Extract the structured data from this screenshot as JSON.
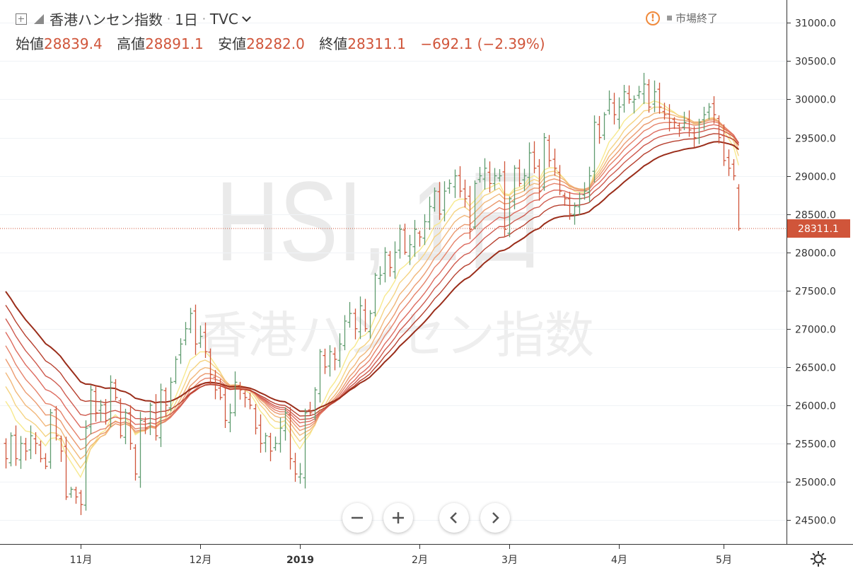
{
  "header": {
    "symbol_name": "香港ハンセン指数",
    "sep": "·",
    "interval": "1日",
    "source": "TVC",
    "ohlc": {
      "open_label": "始値",
      "open": "28839.4",
      "high_label": "高値",
      "high": "28891.1",
      "low_label": "安値",
      "low": "28282.0",
      "close_label": "終値",
      "close": "28311.1",
      "change": "−692.1 (−2.39%)"
    },
    "market_status": "市場終了",
    "status_icon": "!"
  },
  "watermark": {
    "main": "HSI, 1日",
    "sub": "香港ハンセン指数"
  },
  "colors": {
    "up": "#5f9c6e",
    "down": "#d0553a",
    "price_label_bg": "#d0553a",
    "ribbon": [
      "#f7e98e",
      "#f5d382",
      "#f1b77a",
      "#eb9a6f",
      "#e5826a",
      "#dd6b5f",
      "#ce5a4e",
      "#b7402f",
      "#9a2d1a"
    ]
  },
  "chart_data": {
    "type": "candlestick",
    "symbol": "HSI",
    "title": "香港ハンセン指数",
    "interval": "1日",
    "ylim": [
      24175,
      31300
    ],
    "y_ticks": [
      24500,
      25000,
      25500,
      26000,
      26500,
      27000,
      27500,
      28000,
      28500,
      29000,
      29500,
      30000,
      30500,
      31000
    ],
    "y_tick_labels": [
      "24500.0",
      "25000.0",
      "25500.0",
      "26000.0",
      "26500.0",
      "27000.0",
      "27500.0",
      "28000.0",
      "28500.0",
      "29000.0",
      "29500.0",
      "30000.0",
      "30500.0",
      "31000.0"
    ],
    "x_ticks": [
      {
        "label": "11月",
        "bar": 15
      },
      {
        "label": "12月",
        "bar": 39
      },
      {
        "label": "2019",
        "bar": 59
      },
      {
        "label": "2月",
        "bar": 83
      },
      {
        "label": "3月",
        "bar": 101
      },
      {
        "label": "4月",
        "bar": 123
      },
      {
        "label": "5月",
        "bar": 144
      }
    ],
    "last_price": 28311.1,
    "last_price_label": "28311.1",
    "closes": [
      25300,
      25600,
      25300,
      25500,
      25400,
      25600,
      25500,
      25300,
      25200,
      25900,
      25600,
      25400,
      24800,
      24900,
      24800,
      24700,
      25700,
      26200,
      25900,
      26000,
      25800,
      26300,
      26100,
      25600,
      25900,
      25500,
      25100,
      25800,
      25700,
      26000,
      25600,
      26200,
      26000,
      26300,
      26600,
      26800,
      27000,
      27200,
      26800,
      26900,
      26700,
      26400,
      26200,
      26100,
      25800,
      25900,
      26300,
      26200,
      26100,
      26000,
      25700,
      25500,
      25600,
      25400,
      25500,
      25700,
      25900,
      25300,
      25100,
      25100,
      25900,
      25900,
      26200,
      26700,
      26500,
      26700,
      26600,
      26800,
      27100,
      27200,
      27000,
      27300,
      27000,
      27200,
      27700,
      27700,
      28000,
      27800,
      28000,
      28300,
      28000,
      28100,
      28300,
      28200,
      28400,
      28600,
      28800,
      28500,
      28800,
      28900,
      29000,
      28800,
      28700,
      28300,
      28900,
      29000,
      29100,
      28900,
      29000,
      29000,
      28300,
      28700,
      29100,
      28900,
      29000,
      29300,
      29100,
      28800,
      29500,
      29200,
      29100,
      28800,
      28700,
      28500,
      28600,
      28700,
      28800,
      29000,
      29700,
      29500,
      29800,
      30000,
      29800,
      29900,
      30100,
      30000,
      30000,
      30100,
      30200,
      29900,
      30100,
      29900,
      29800,
      29700,
      29700,
      29600,
      29700,
      29600,
      29500,
      29700,
      29800,
      29900,
      29800,
      29500,
      29200,
      29100,
      29000,
      28311.1
    ],
    "series": [
      {
        "name": "EMA 1",
        "values": []
      },
      {
        "name": "EMA 2",
        "values": []
      },
      {
        "name": "EMA 3",
        "values": []
      },
      {
        "name": "EMA 4",
        "values": []
      },
      {
        "name": "EMA 5",
        "values": []
      },
      {
        "name": "EMA 6",
        "values": []
      },
      {
        "name": "EMA 7",
        "values": []
      },
      {
        "name": "EMA 8",
        "values": []
      }
    ],
    "legend": "none",
    "grid": "horizontal"
  }
}
